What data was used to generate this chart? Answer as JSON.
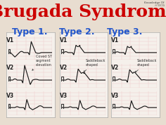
{
  "title": "Brugada Syndrome",
  "title_color": "#cc0000",
  "title_fontsize": 18,
  "subtitle_color": "#2255cc",
  "subtitle_fontsize": 9,
  "background_color": "#e8ddd0",
  "panel_bg": "#f5f0eb",
  "types": [
    "Type 1.",
    "Type 2.",
    "Type 3."
  ],
  "leads": [
    "V1",
    "V2",
    "V3"
  ],
  "annotation1": "Coved ST\nsegment\nelevation",
  "annotation2": "Saddleback\nshaped",
  "annotation3": "Saddleback\nshaped",
  "grid_color": "#f0c8c8",
  "ecg_color": "#111111",
  "lead_color": "#222222"
}
